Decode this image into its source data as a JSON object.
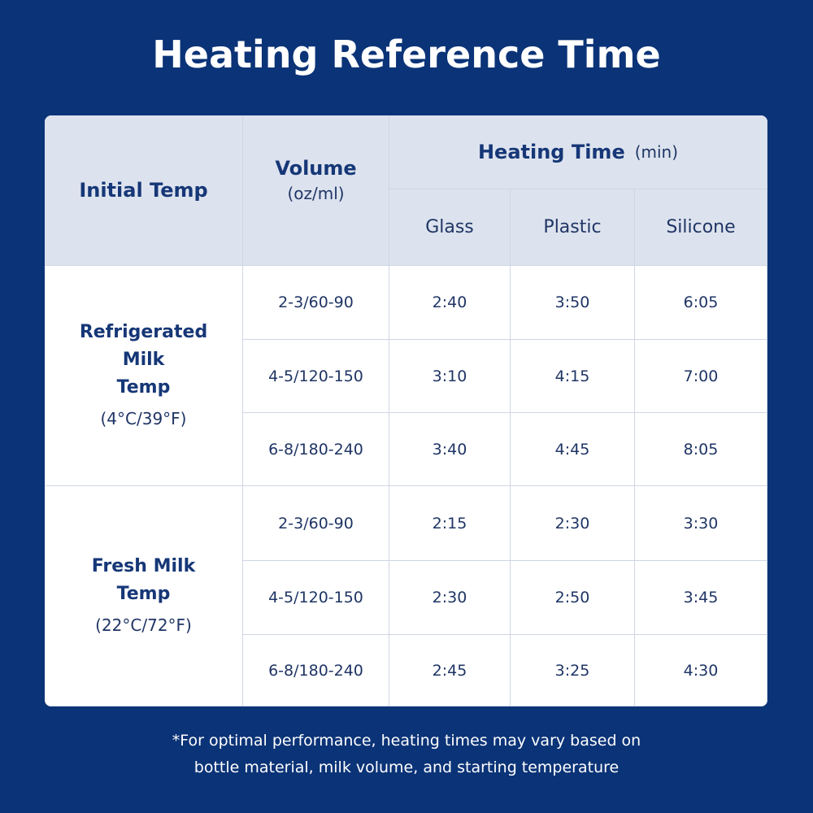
{
  "title": "Heating Reference Time",
  "table": {
    "headers": {
      "initial_temp": "Initial Temp",
      "volume": "Volume",
      "volume_unit": "(oz/ml)",
      "heating_time": "Heating Time",
      "heating_time_unit": "(min)",
      "materials": [
        "Glass",
        "Plastic",
        "Silicone"
      ]
    },
    "groups": [
      {
        "label_lines": [
          "Refrigerated",
          "Milk",
          "Temp"
        ],
        "temp": "(4°C/39°F)",
        "rows": [
          [
            "2-3/60-90",
            "2:40",
            "3:50",
            "6:05"
          ],
          [
            "4-5/120-150",
            "3:10",
            "4:15",
            "7:00"
          ],
          [
            "6-8/180-240",
            "3:40",
            "4:45",
            "8:05"
          ]
        ]
      },
      {
        "label_lines": [
          "Fresh Milk",
          "Temp"
        ],
        "temp": "(22°C/72°F)",
        "rows": [
          [
            "2-3/60-90",
            "2:15",
            "2:30",
            "3:30"
          ],
          [
            "4-5/120-150",
            "2:30",
            "2:50",
            "3:45"
          ],
          [
            "6-8/180-240",
            "2:45",
            "3:25",
            "4:30"
          ]
        ]
      }
    ]
  },
  "footnote_lines": [
    "*For optimal performance, heating times may vary based on",
    "bottle material, milk volume, and starting temperature"
  ]
}
